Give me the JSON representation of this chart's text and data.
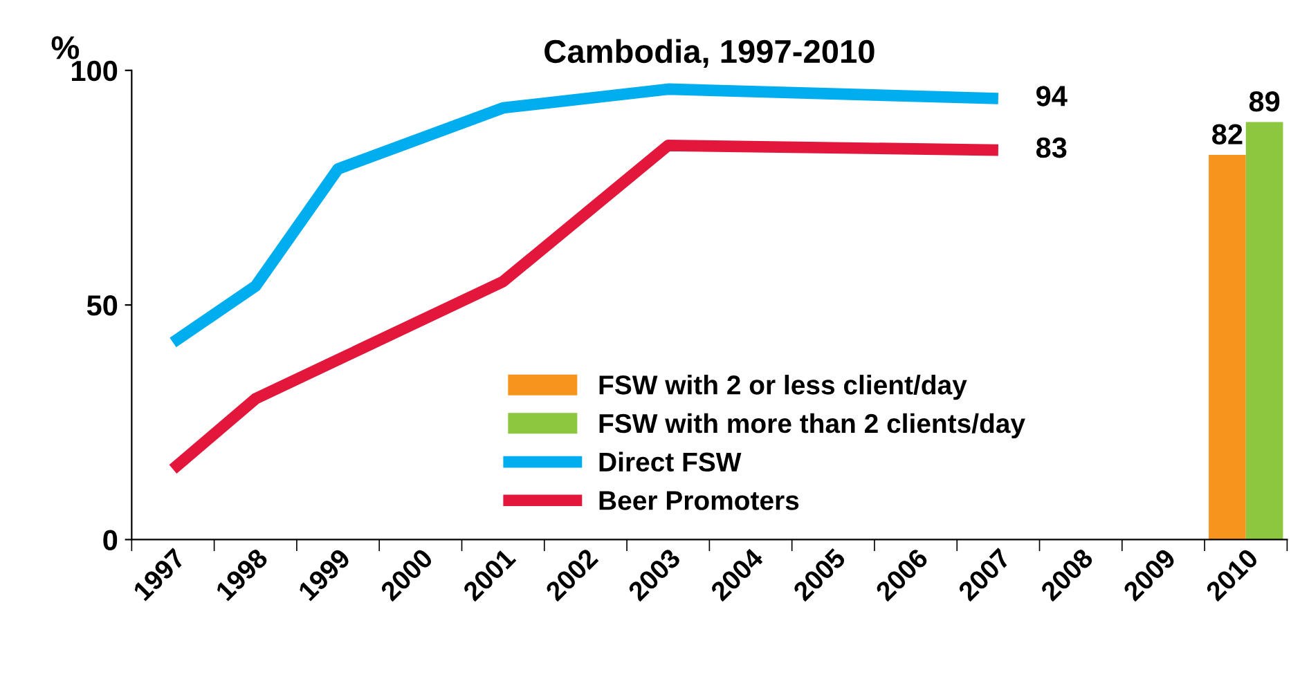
{
  "chart_data": {
    "type": "line",
    "title": "Cambodia, 1997-2010",
    "ylabel": "%",
    "categories": [
      "1997",
      "1998",
      "1999",
      "2000",
      "2001",
      "2002",
      "2003",
      "2004",
      "2005",
      "2006",
      "2007",
      "2008",
      "2009",
      "2010"
    ],
    "series": [
      {
        "name": "FSW with 2 or less client/day",
        "type": "bar",
        "color": "#f7941d",
        "values": [
          null,
          null,
          null,
          null,
          null,
          null,
          null,
          null,
          null,
          null,
          null,
          null,
          null,
          82
        ],
        "value_labels": [
          null,
          null,
          null,
          null,
          null,
          null,
          null,
          null,
          null,
          null,
          null,
          null,
          null,
          "82"
        ]
      },
      {
        "name": "FSW with more than 2 clients/day",
        "type": "bar",
        "color": "#8dc63f",
        "values": [
          null,
          null,
          null,
          null,
          null,
          null,
          null,
          null,
          null,
          null,
          null,
          null,
          null,
          89
        ],
        "value_labels": [
          null,
          null,
          null,
          null,
          null,
          null,
          null,
          null,
          null,
          null,
          null,
          null,
          null,
          "89"
        ]
      },
      {
        "name": "Direct FSW",
        "color": "#00aeef",
        "values": [
          42,
          54,
          79,
          null,
          92,
          null,
          96,
          null,
          null,
          null,
          94,
          null,
          null,
          null
        ],
        "value_labels": [
          null,
          null,
          null,
          null,
          null,
          null,
          null,
          null,
          null,
          null,
          "94",
          null,
          null,
          null
        ]
      },
      {
        "name": "Beer Promoters",
        "color": "#e2173b",
        "values": [
          15,
          30,
          null,
          null,
          55,
          null,
          84,
          null,
          null,
          null,
          83,
          null,
          null,
          null
        ],
        "value_labels": [
          null,
          null,
          null,
          null,
          null,
          null,
          null,
          null,
          null,
          null,
          "83",
          null,
          null,
          null
        ]
      }
    ],
    "ylim": [
      0,
      100
    ],
    "yticks": [
      0,
      50,
      100
    ],
    "grid": false,
    "legend": "bottom"
  }
}
